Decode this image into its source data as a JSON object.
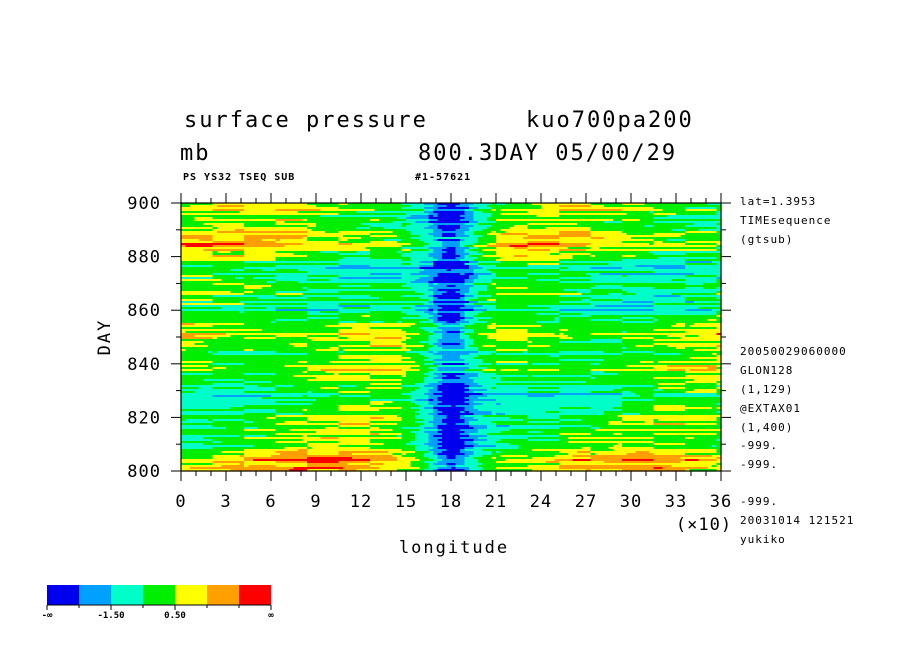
{
  "header": {
    "title_left": "surface pressure",
    "title_right": "kuo700pa200",
    "subtitle_left": "mb",
    "subtitle_right": "800.3DAY 05/00/29",
    "meta_left": "PS YS32 TSEQ SUB",
    "meta_right": "#1-57621"
  },
  "right_info_top": [
    "lat=1.3953",
    "TIMEsequence",
    "(gtsub)"
  ],
  "right_info_bottom": [
    "20050029060000",
    "GLON128",
    "(1,129)",
    "@EXTAX01",
    "(1,400)",
    "-999.",
    "-999.",
    "-999.",
    "20031014 121521",
    "yukiko"
  ],
  "chart_data": {
    "type": "heatmap",
    "xlabel": "longitude",
    "ylabel": "DAY",
    "x_multiplier_label": "(×10)",
    "x_ticks": [
      "0",
      "3",
      "6",
      "9",
      "12",
      "15",
      "18",
      "21",
      "24",
      "27",
      "30",
      "33",
      "36"
    ],
    "y_ticks": [
      "800",
      "820",
      "840",
      "860",
      "880",
      "900"
    ],
    "xlim": [
      0,
      36
    ],
    "ylim": [
      800,
      900
    ],
    "legend": {
      "colors": [
        "#0000ee",
        "#00a0ff",
        "#00ffc8",
        "#00ee00",
        "#ffff00",
        "#ffa000",
        "#ff0000"
      ],
      "labels": [
        "-∞",
        "-1.50",
        "0.50",
        "∞"
      ]
    }
  }
}
